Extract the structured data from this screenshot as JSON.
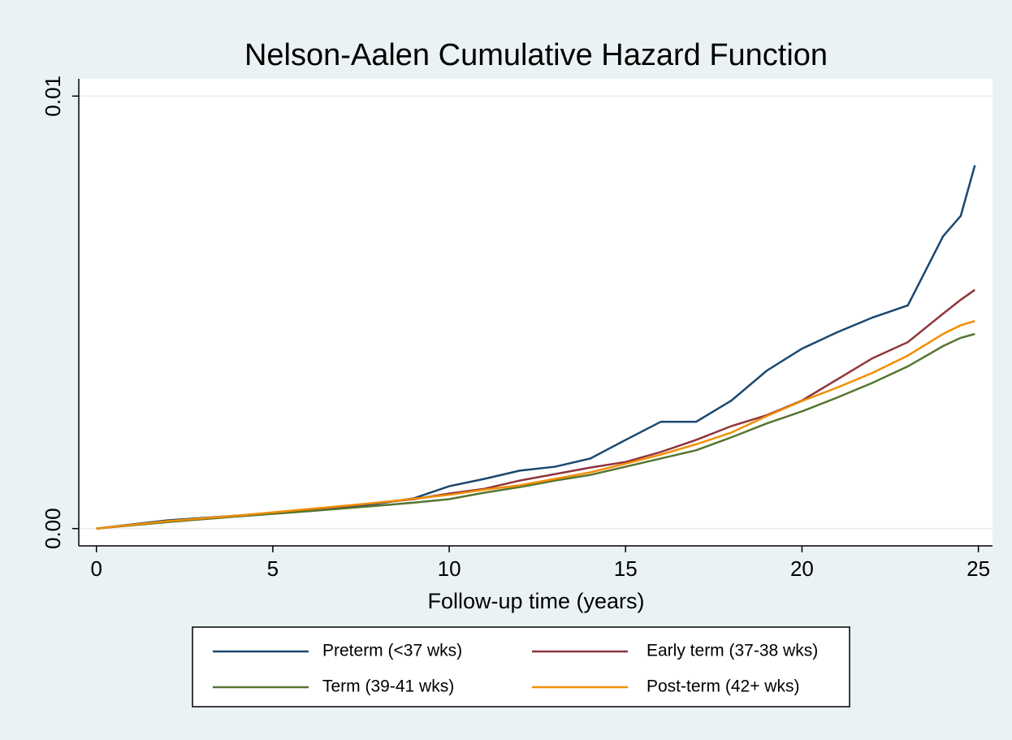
{
  "chart_data": {
    "type": "line",
    "title": "Nelson-Aalen Cumulative Hazard Function",
    "x_label": "Follow-up time (years)",
    "x": [
      0,
      2,
      4,
      6,
      8,
      9,
      10,
      11,
      12,
      13,
      14,
      15,
      16,
      17,
      18,
      19,
      20,
      21,
      22,
      23,
      24,
      24.5,
      24.9
    ],
    "series": [
      {
        "name": "Preterm (<37 wks)",
        "color": "#1a476f",
        "values": [
          0,
          0.00019,
          0.0003,
          0.00042,
          0.00058,
          0.0007,
          0.00098,
          0.00115,
          0.00134,
          0.00143,
          0.00162,
          0.00205,
          0.00247,
          0.00247,
          0.00296,
          0.00365,
          0.00416,
          0.00454,
          0.00488,
          0.00516,
          0.00676,
          0.00723,
          0.0084
        ]
      },
      {
        "name": "Early term (37-38 wks)",
        "color": "#90353b",
        "values": [
          0,
          0.00017,
          0.0003,
          0.00043,
          0.0006,
          0.00068,
          0.00081,
          0.00092,
          0.00111,
          0.00126,
          0.00141,
          0.00154,
          0.00177,
          0.00205,
          0.00237,
          0.00262,
          0.00296,
          0.00345,
          0.00394,
          0.00431,
          0.00497,
          0.00529,
          0.00552
        ]
      },
      {
        "name": "Term (39-41 wks)",
        "color": "#55752f",
        "values": [
          0,
          0.00015,
          0.00028,
          0.0004,
          0.00053,
          0.0006,
          0.00068,
          0.00083,
          0.00096,
          0.00111,
          0.00124,
          0.00143,
          0.00162,
          0.00181,
          0.00211,
          0.00243,
          0.00271,
          0.00303,
          0.00337,
          0.00375,
          0.00422,
          0.00441,
          0.0045
        ]
      },
      {
        "name": "Post-term (42+ wks)",
        "color": "#f28e00",
        "values": [
          0,
          0.00017,
          0.0003,
          0.00045,
          0.0006,
          0.00069,
          0.00078,
          0.0009,
          0.001,
          0.00115,
          0.0013,
          0.0015,
          0.00171,
          0.00195,
          0.00222,
          0.0026,
          0.00295,
          0.00326,
          0.0036,
          0.004,
          0.0045,
          0.0047,
          0.0048
        ]
      }
    ],
    "xlim": [
      -0.5,
      25.4
    ],
    "xticks": [
      0,
      5,
      10,
      15,
      20,
      25
    ],
    "ylim": [
      -0.0004,
      0.0104
    ],
    "yticks": [
      {
        "value": 0,
        "label": "0.00"
      },
      0.01
    ],
    "grid": true
  }
}
